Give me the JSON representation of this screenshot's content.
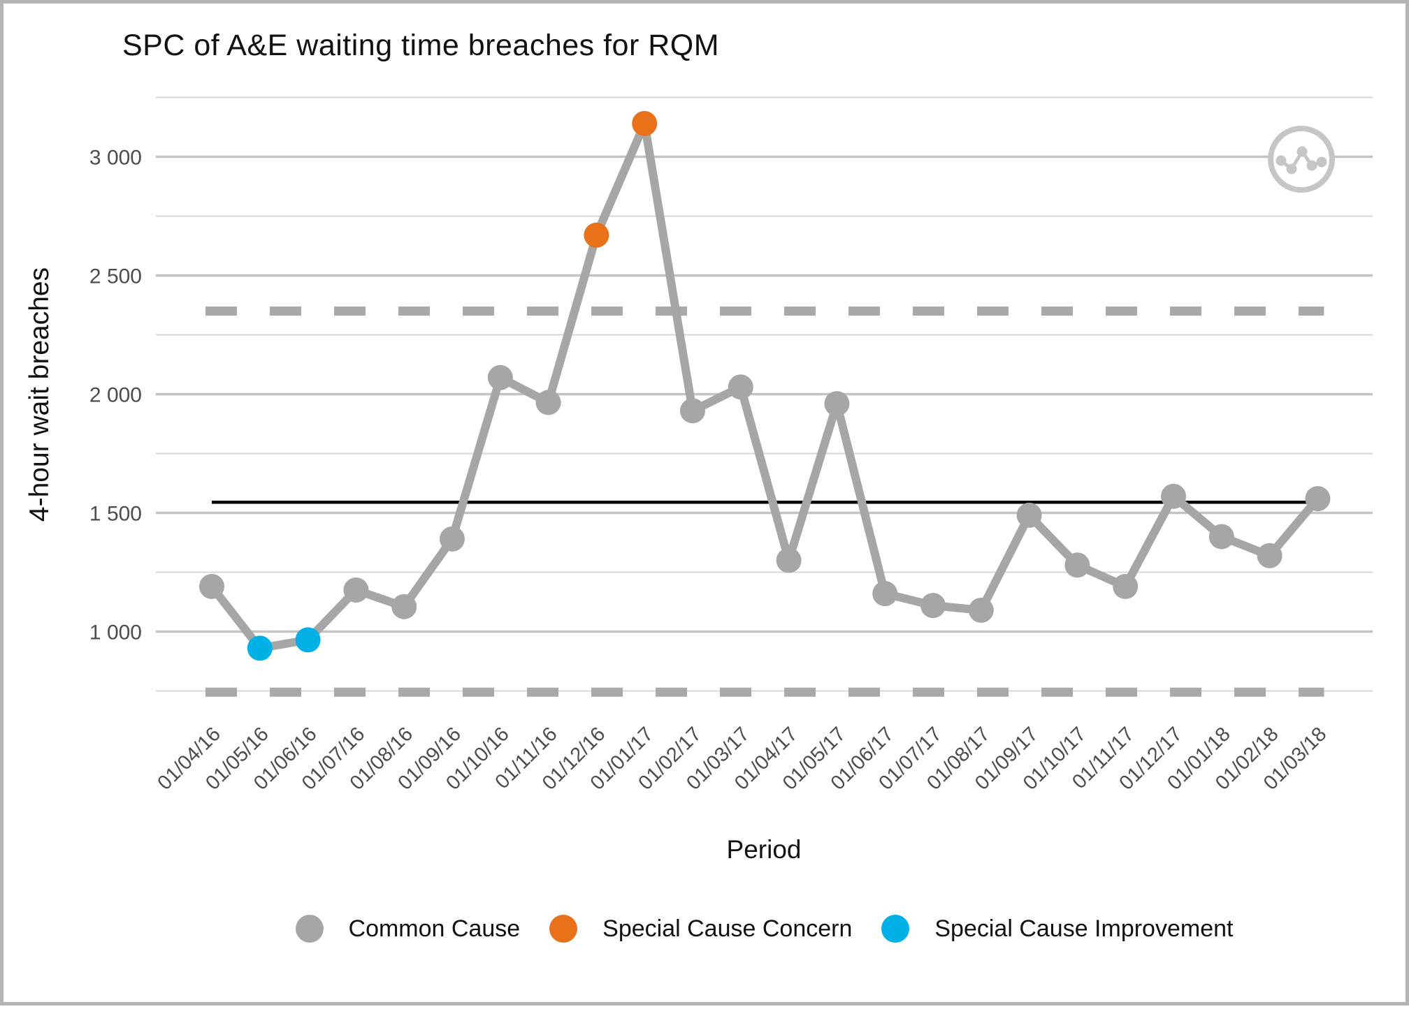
{
  "title": "SPC of A&E waiting time breaches for RQM",
  "chart_data": {
    "type": "line",
    "title": "SPC of A&E waiting time breaches for RQM",
    "xlabel": "Period",
    "ylabel": "4-hour wait breaches",
    "x": [
      "01/04/16",
      "01/05/16",
      "01/06/16",
      "01/07/16",
      "01/08/16",
      "01/09/16",
      "01/10/16",
      "01/11/16",
      "01/12/16",
      "01/01/17",
      "01/02/17",
      "01/03/17",
      "01/04/17",
      "01/05/17",
      "01/06/17",
      "01/07/17",
      "01/08/17",
      "01/09/17",
      "01/10/17",
      "01/11/17",
      "01/12/17",
      "01/01/18",
      "01/02/18",
      "01/03/18"
    ],
    "series": [
      {
        "name": "4-hour wait breaches",
        "values": [
          1190,
          930,
          965,
          1175,
          1105,
          1390,
          2070,
          1965,
          2670,
          3140,
          1930,
          2030,
          1300,
          1960,
          1160,
          1110,
          1090,
          1490,
          1280,
          1190,
          1570,
          1400,
          1320,
          1560
        ]
      }
    ],
    "point_categories": [
      "common",
      "improvement",
      "improvement",
      "common",
      "common",
      "common",
      "common",
      "common",
      "concern",
      "concern",
      "common",
      "common",
      "common",
      "common",
      "common",
      "common",
      "common",
      "common",
      "common",
      "common",
      "common",
      "common",
      "common",
      "common"
    ],
    "center_line": 1545,
    "upper_control_limit": 2350,
    "lower_control_limit": 745,
    "ylim": [
      660,
      3320
    ],
    "yticks": [
      1000,
      1500,
      2000,
      2500,
      3000
    ],
    "ytick_labels": [
      "1 000",
      "1 500",
      "2 000",
      "2 500",
      "3 000"
    ],
    "minor_gridlines": [
      750,
      1250,
      1750,
      2250,
      2750,
      3250
    ],
    "grid": "on",
    "legend_position": "bottom"
  },
  "legend": {
    "items": [
      {
        "label": "Common Cause",
        "color": "#a6a6a6",
        "category": "common"
      },
      {
        "label": "Special Cause Concern",
        "color": "#e8711a",
        "category": "concern"
      },
      {
        "label": "Special Cause Improvement",
        "color": "#00b1e8",
        "category": "improvement"
      }
    ]
  },
  "icon": {
    "name": "line-chart-badge"
  },
  "colors": {
    "common": "#a6a6a6",
    "concern": "#e8711a",
    "improvement": "#00b1e8",
    "line": "#a6a6a6",
    "center_line": "#000000",
    "control_limit": "#a9a9a9",
    "major_grid": "#c4c4c4",
    "minor_grid": "#d7d7d7",
    "axis_text": "#4d4d4d",
    "title_text": "#111111",
    "border": "#b3b3b3",
    "icon": "#c6c6c6"
  }
}
